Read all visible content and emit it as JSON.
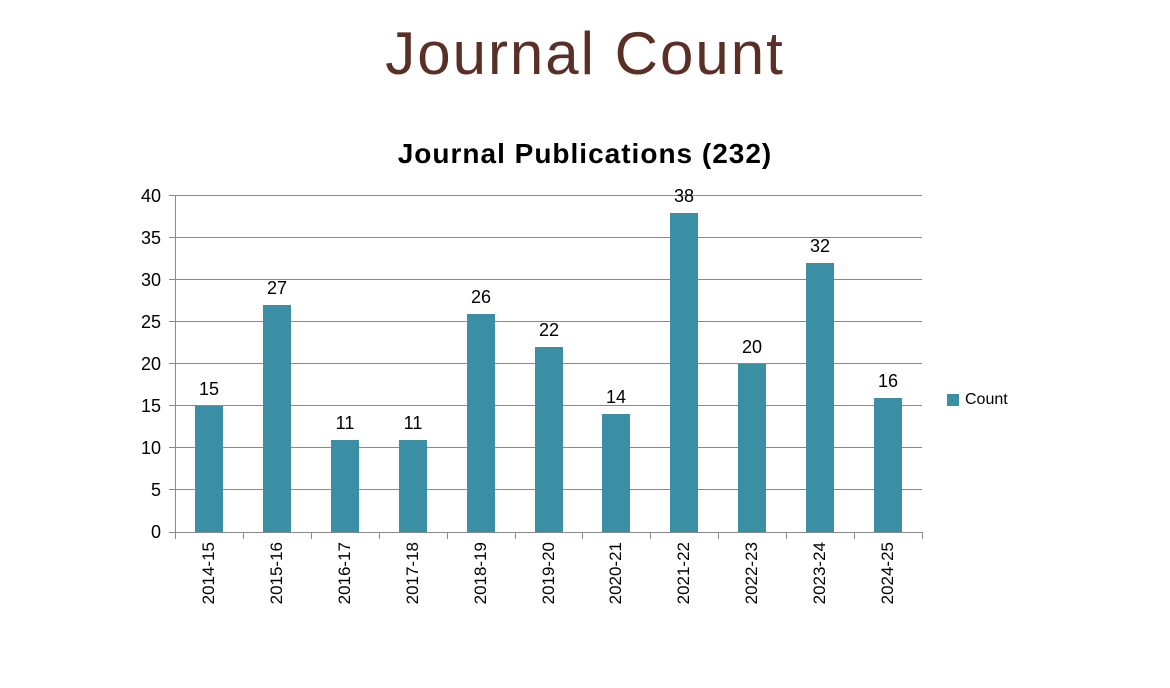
{
  "page_title": "Journal Count",
  "chart_data": {
    "type": "bar",
    "title": "Journal Count",
    "subtitle": "Journal Publications (232)",
    "total": 232,
    "categories": [
      "2014-15",
      "2015-16",
      "2016-17",
      "2017-18",
      "2018-19",
      "2019-20",
      "2020-21",
      "2021-22",
      "2022-23",
      "2023-24",
      "2024-25"
    ],
    "series": [
      {
        "name": "Count",
        "values": [
          15,
          27,
          11,
          11,
          26,
          22,
          14,
          38,
          20,
          32,
          16
        ]
      }
    ],
    "xlabel": "",
    "ylabel": "",
    "ylim": [
      0,
      40
    ],
    "ytick_step": 5,
    "yticks": [
      0,
      5,
      10,
      15,
      20,
      25,
      30,
      35,
      40
    ],
    "grid": "horizontal",
    "data_labels": true,
    "legend_position": "right",
    "x_label_rotation": -90,
    "colors": {
      "bar": "#3A8FA5",
      "title": "#5A3026",
      "grid": "#8A8A8A",
      "text": "#000000"
    }
  }
}
